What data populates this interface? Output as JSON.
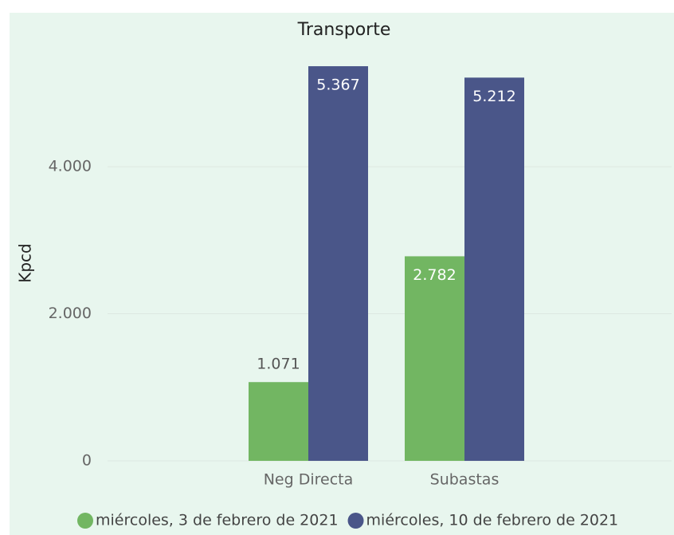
{
  "chart_data": {
    "type": "bar",
    "title": "Transporte",
    "y_label": "Kpcd",
    "categories": [
      "Neg Directa",
      "Subastas"
    ],
    "series": [
      {
        "name": "miércoles, 3 de febrero de 2021",
        "color": "#72b662",
        "values": [
          1071,
          2782
        ],
        "value_labels": [
          "1.071",
          "2.782"
        ]
      },
      {
        "name": "miércoles, 10 de febrero de 2021",
        "color": "#4a5689",
        "values": [
          5367,
          5212
        ],
        "value_labels": [
          "5.367",
          "5.212"
        ]
      }
    ],
    "ylim": [
      0,
      5400
    ],
    "yticks": [
      0,
      {
        "value": 2000,
        "label": "2.000"
      },
      {
        "value": 4000,
        "label": "4.000"
      }
    ],
    "grid": true,
    "legend": "bottom"
  }
}
